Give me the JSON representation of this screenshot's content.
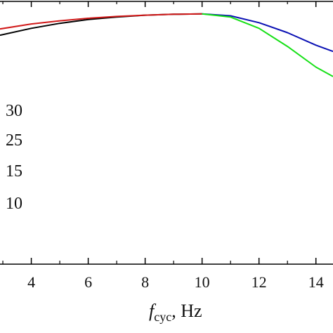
{
  "chart_data": {
    "type": "line",
    "xlabel": {
      "symbol": "f",
      "subscript": "cyc",
      "unit": ", Hz"
    },
    "xlim": [
      2.9,
      14.6
    ],
    "xticks": [
      4,
      6,
      8,
      10,
      12,
      14
    ],
    "xtick_labels": [
      "4",
      "6",
      "8",
      "10",
      "12",
      "14"
    ],
    "ylim": [
      0.6,
      1.02
    ],
    "legend_labels": [
      "30",
      "25",
      "15",
      "10"
    ],
    "series": [
      {
        "color": "#000000",
        "x": [
          2.9,
          4,
          5,
          6,
          7,
          8,
          9,
          10
        ],
        "y": [
          0.966,
          0.977,
          0.985,
          0.991,
          0.995,
          0.998,
          0.9995,
          1.0
        ]
      },
      {
        "color": "#d11a1a",
        "x": [
          2.9,
          4,
          5,
          6,
          7,
          8,
          9,
          10
        ],
        "y": [
          0.976,
          0.984,
          0.989,
          0.993,
          0.996,
          0.998,
          0.9995,
          1.0
        ]
      },
      {
        "color": "#0a10b4",
        "x": [
          10,
          11,
          12,
          13,
          14,
          14.6
        ],
        "y": [
          1.0,
          0.997,
          0.986,
          0.97,
          0.95,
          0.94
        ]
      },
      {
        "color": "#16e016",
        "x": [
          10,
          11,
          12,
          13,
          14,
          14.6
        ],
        "y": [
          1.0,
          0.995,
          0.977,
          0.948,
          0.915,
          0.9
        ]
      }
    ]
  }
}
